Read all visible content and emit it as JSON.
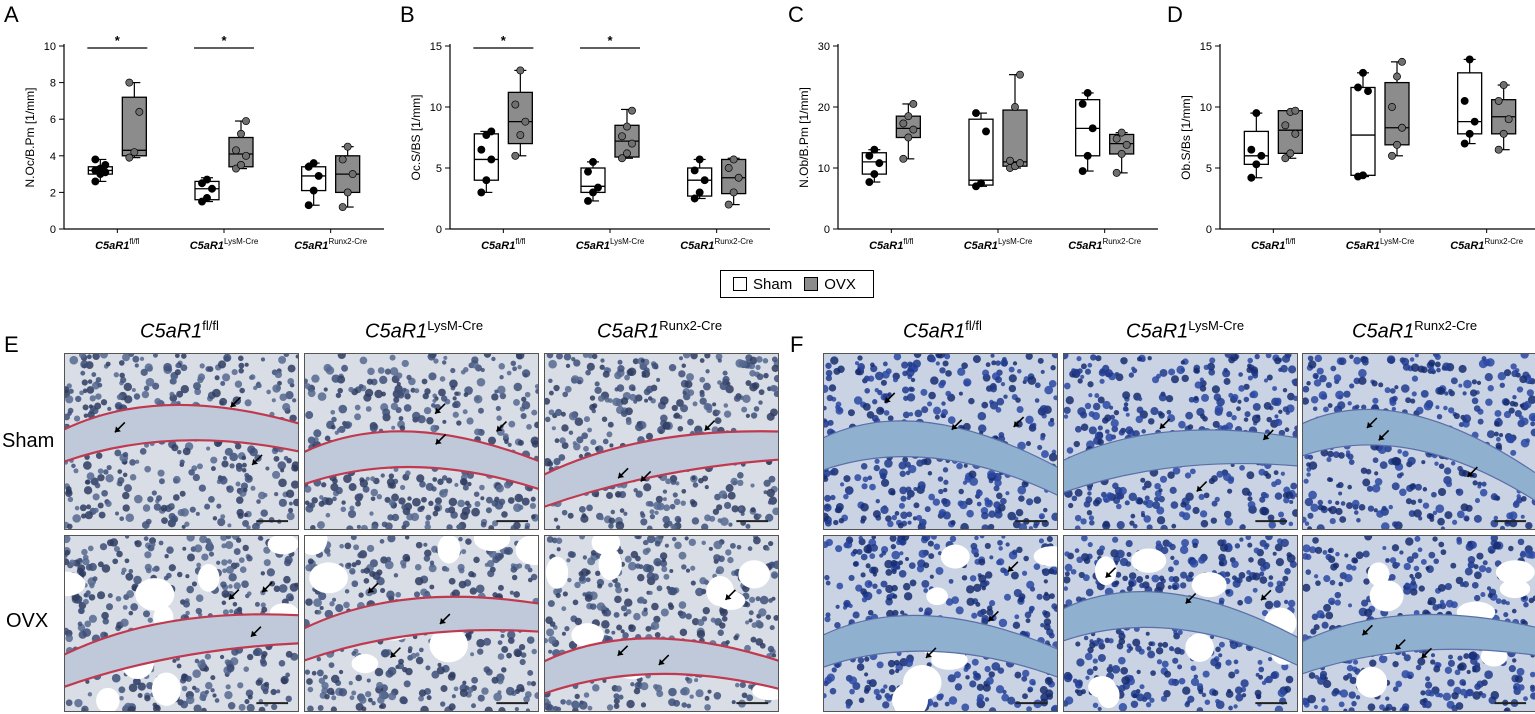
{
  "panels": {
    "a": "A",
    "b": "B",
    "c": "C",
    "d": "D",
    "e": "E",
    "f": "F"
  },
  "groups": [
    "C5aR1",
    "C5aR1",
    "C5aR1"
  ],
  "group_sups": [
    "fl/fl",
    "LysM-Cre",
    "Runx2-Cre"
  ],
  "colors": {
    "sham": "#ffffff",
    "ovx": "#8c8c8c",
    "sham_dot": "#000000",
    "ovx_dot": "#6f6f6f",
    "he_stain": "#b8c6dc",
    "blue_stain": "#3b58a6"
  },
  "legend": {
    "sham": "Sham",
    "ovx": "OVX"
  },
  "images": {
    "row_sham": "Sham",
    "row_ovx": "OVX",
    "scale_bar": "yes",
    "arrows": "black"
  },
  "chart_data": [
    {
      "type": "box",
      "ylabel": "N.Oc/B.Pm [1/mm]",
      "ylim": [
        0,
        10
      ],
      "yticks": [
        0,
        2,
        4,
        6,
        8,
        10
      ],
      "significance": [
        {
          "group": 0,
          "label": "*"
        },
        {
          "group": 1,
          "label": "*"
        }
      ],
      "series": [
        {
          "name": "Sham",
          "groups": [
            {
              "min": 2.6,
              "q1": 3.0,
              "median": 3.2,
              "q3": 3.4,
              "max": 3.8,
              "points": [
                2.6,
                3.0,
                3.1,
                3.2,
                3.3,
                3.5,
                3.8
              ]
            },
            {
              "min": 1.5,
              "q1": 1.6,
              "median": 2.2,
              "q3": 2.6,
              "max": 2.8,
              "points": [
                1.5,
                1.7,
                2.2,
                2.5,
                2.7
              ]
            },
            {
              "min": 1.3,
              "q1": 2.1,
              "median": 2.9,
              "q3": 3.4,
              "max": 3.6,
              "points": [
                1.3,
                2.1,
                2.9,
                3.4,
                3.6
              ]
            }
          ]
        },
        {
          "name": "OVX",
          "groups": [
            {
              "min": 3.9,
              "q1": 4.0,
              "median": 4.3,
              "q3": 7.2,
              "max": 8.0,
              "points": [
                3.9,
                4.2,
                6.4,
                8.0
              ]
            },
            {
              "min": 3.3,
              "q1": 3.4,
              "median": 4.1,
              "q3": 5.0,
              "max": 5.9,
              "points": [
                3.3,
                3.5,
                4.0,
                4.3,
                5.2,
                5.9
              ]
            },
            {
              "min": 1.2,
              "q1": 2.0,
              "median": 3.0,
              "q3": 4.0,
              "max": 4.5,
              "points": [
                1.2,
                2.0,
                3.0,
                3.8,
                4.5
              ]
            }
          ]
        }
      ]
    },
    {
      "type": "box",
      "ylabel": "Oc.S/BS [1/mm]",
      "ylim": [
        0,
        15
      ],
      "yticks": [
        0,
        5,
        10,
        15
      ],
      "significance": [
        {
          "group": 0,
          "label": "*"
        },
        {
          "group": 1,
          "label": "*"
        }
      ],
      "series": [
        {
          "name": "Sham",
          "groups": [
            {
              "min": 3.0,
              "q1": 4.0,
              "median": 5.7,
              "q3": 7.8,
              "max": 8.0,
              "points": [
                3.0,
                4.0,
                5.7,
                6.5,
                7.7,
                8.0
              ]
            },
            {
              "min": 2.3,
              "q1": 3.0,
              "median": 3.5,
              "q3": 5.0,
              "max": 5.5,
              "points": [
                2.3,
                3.0,
                3.4,
                4.7,
                5.5
              ]
            },
            {
              "min": 2.5,
              "q1": 2.7,
              "median": 4.0,
              "q3": 5.0,
              "max": 5.7,
              "points": [
                2.5,
                3.0,
                4.0,
                4.8,
                5.7
              ]
            }
          ]
        },
        {
          "name": "OVX",
          "groups": [
            {
              "min": 6.0,
              "q1": 7.0,
              "median": 8.8,
              "q3": 11.2,
              "max": 13.0,
              "points": [
                6.0,
                7.7,
                8.8,
                10.2,
                13.0
              ]
            },
            {
              "min": 5.8,
              "q1": 5.9,
              "median": 7.2,
              "q3": 8.5,
              "max": 9.8,
              "points": [
                5.8,
                6.2,
                7.0,
                7.6,
                8.4,
                9.7
              ]
            },
            {
              "min": 2.0,
              "q1": 2.9,
              "median": 4.2,
              "q3": 5.7,
              "max": 5.8,
              "points": [
                2.0,
                3.0,
                4.2,
                5.0,
                5.7
              ]
            }
          ]
        }
      ]
    },
    {
      "type": "box",
      "ylabel": "N.Ob/B.Pm [1/mm]",
      "ylim": [
        0,
        30
      ],
      "yticks": [
        0,
        10,
        20,
        30
      ],
      "series": [
        {
          "name": "Sham",
          "groups": [
            {
              "min": 7.7,
              "q1": 9.0,
              "median": 11.0,
              "q3": 12.5,
              "max": 13.0,
              "points": [
                7.7,
                9.0,
                10.8,
                12.0,
                13.0
              ]
            },
            {
              "min": 7.0,
              "q1": 7.2,
              "median": 8.0,
              "q3": 18.0,
              "max": 19.0,
              "points": [
                7.0,
                7.5,
                16.0,
                19.0
              ]
            },
            {
              "min": 9.5,
              "q1": 12.0,
              "median": 16.5,
              "q3": 21.2,
              "max": 22.3,
              "points": [
                9.5,
                12.0,
                16.5,
                20.5,
                22.3
              ]
            }
          ]
        },
        {
          "name": "OVX",
          "groups": [
            {
              "min": 11.5,
              "q1": 15.0,
              "median": 16.5,
              "q3": 18.5,
              "max": 20.5,
              "points": [
                11.5,
                15.0,
                16.3,
                17.3,
                18.5,
                20.5
              ]
            },
            {
              "min": 10.0,
              "q1": 10.3,
              "median": 11.0,
              "q3": 19.5,
              "max": 25.3,
              "points": [
                10.0,
                10.3,
                10.8,
                11.2,
                20.0,
                25.3
              ]
            },
            {
              "min": 9.2,
              "q1": 12.3,
              "median": 14.0,
              "q3": 15.5,
              "max": 15.8,
              "points": [
                9.2,
                12.3,
                13.8,
                14.8,
                15.8
              ]
            }
          ]
        }
      ]
    },
    {
      "type": "box",
      "ylabel": "Ob.S/Bs [1/mm]",
      "ylim": [
        0,
        15
      ],
      "yticks": [
        0,
        5,
        10,
        15
      ],
      "series": [
        {
          "name": "Sham",
          "groups": [
            {
              "min": 4.2,
              "q1": 5.3,
              "median": 6.0,
              "q3": 8.0,
              "max": 9.5,
              "points": [
                4.2,
                5.3,
                6.0,
                6.5,
                9.5
              ]
            },
            {
              "min": 4.3,
              "q1": 4.4,
              "median": 7.7,
              "q3": 11.6,
              "max": 12.8,
              "points": [
                4.3,
                4.4,
                11.3,
                11.6,
                12.8
              ]
            },
            {
              "min": 7.0,
              "q1": 7.8,
              "median": 8.8,
              "q3": 12.8,
              "max": 13.9,
              "points": [
                7.0,
                7.8,
                8.8,
                10.5,
                13.9
              ]
            }
          ]
        },
        {
          "name": "OVX",
          "groups": [
            {
              "min": 5.8,
              "q1": 6.2,
              "median": 8.1,
              "q3": 9.7,
              "max": 9.7,
              "points": [
                5.8,
                6.2,
                7.8,
                8.5,
                9.6,
                9.7
              ]
            },
            {
              "min": 6.0,
              "q1": 6.9,
              "median": 8.3,
              "q3": 12.0,
              "max": 13.7,
              "points": [
                6.0,
                6.9,
                8.3,
                10.0,
                12.5,
                13.7
              ]
            },
            {
              "min": 6.5,
              "q1": 7.8,
              "median": 9.2,
              "q3": 10.6,
              "max": 11.8,
              "points": [
                6.5,
                7.8,
                9.0,
                10.5,
                11.8
              ]
            }
          ]
        }
      ]
    }
  ]
}
